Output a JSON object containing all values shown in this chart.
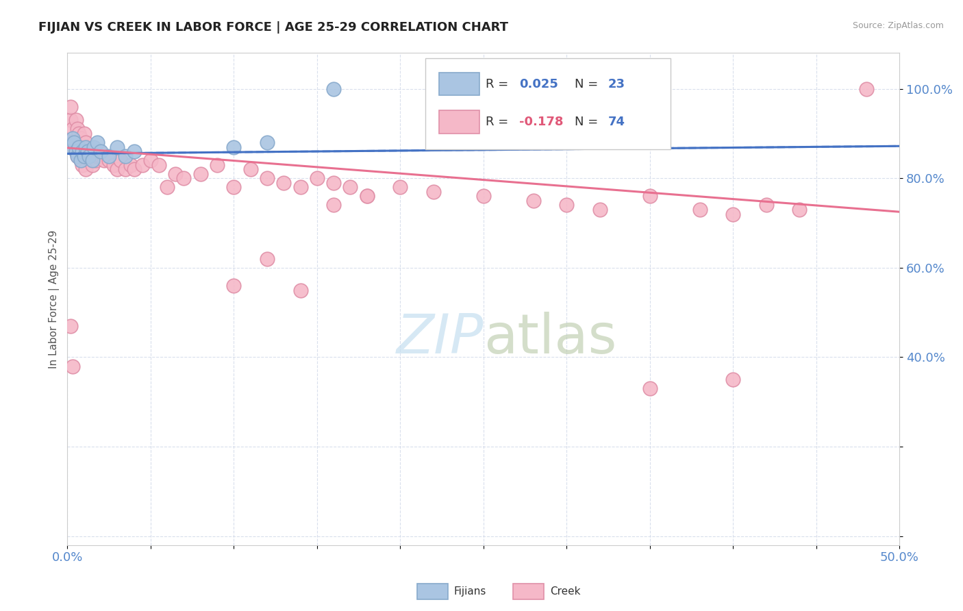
{
  "title": "FIJIAN VS CREEK IN LABOR FORCE | AGE 25-29 CORRELATION CHART",
  "source": "Source: ZipAtlas.com",
  "ylabel": "In Labor Force | Age 25-29",
  "xmin": 0.0,
  "xmax": 0.5,
  "ymin": -0.02,
  "ymax": 1.08,
  "yticks": [
    0.0,
    0.2,
    0.4,
    0.6,
    0.8,
    1.0
  ],
  "ytick_labels": [
    "",
    "",
    "40.0%",
    "60.0%",
    "80.0%",
    "100.0%"
  ],
  "xticks": [
    0.0,
    0.05,
    0.1,
    0.15,
    0.2,
    0.25,
    0.3,
    0.35,
    0.4,
    0.45,
    0.5
  ],
  "xtick_labels_show": [
    "0.0%",
    "",
    "",
    "",
    "",
    "",
    "",
    "",
    "",
    "",
    "50.0%"
  ],
  "color_fijian": "#aac5e2",
  "color_creek": "#f5b8c8",
  "color_fijian_edge": "#88aacc",
  "color_creek_edge": "#e090a8",
  "color_fijian_line": "#4472c4",
  "color_creek_line": "#e87090",
  "color_blue_text": "#4472c4",
  "color_pink_text": "#e05878",
  "color_axis_text": "#5588cc",
  "watermark_color": "#c5dff0",
  "fijian_x": [
    0.002,
    0.003,
    0.004,
    0.005,
    0.006,
    0.007,
    0.008,
    0.009,
    0.01,
    0.011,
    0.012,
    0.013,
    0.015,
    0.016,
    0.018,
    0.02,
    0.025,
    0.03,
    0.035,
    0.04,
    0.1,
    0.12,
    0.16
  ],
  "fijian_y": [
    0.87,
    0.89,
    0.88,
    0.86,
    0.85,
    0.87,
    0.84,
    0.86,
    0.85,
    0.87,
    0.86,
    0.85,
    0.84,
    0.87,
    0.88,
    0.86,
    0.85,
    0.87,
    0.85,
    0.86,
    0.87,
    0.88,
    1.0
  ],
  "creek_x": [
    0.001,
    0.002,
    0.002,
    0.003,
    0.003,
    0.004,
    0.005,
    0.005,
    0.006,
    0.006,
    0.007,
    0.007,
    0.008,
    0.008,
    0.009,
    0.009,
    0.01,
    0.01,
    0.011,
    0.011,
    0.012,
    0.013,
    0.014,
    0.015,
    0.016,
    0.017,
    0.018,
    0.019,
    0.02,
    0.022,
    0.025,
    0.028,
    0.03,
    0.032,
    0.035,
    0.038,
    0.04,
    0.045,
    0.05,
    0.055,
    0.06,
    0.065,
    0.07,
    0.08,
    0.09,
    0.1,
    0.11,
    0.12,
    0.13,
    0.14,
    0.15,
    0.16,
    0.17,
    0.18,
    0.2,
    0.22,
    0.25,
    0.28,
    0.3,
    0.32,
    0.35,
    0.38,
    0.4,
    0.42,
    0.44,
    0.1,
    0.12,
    0.14,
    0.16,
    0.18,
    0.35,
    0.4,
    0.002,
    0.003,
    0.48
  ],
  "creek_y": [
    0.88,
    0.93,
    0.96,
    0.91,
    0.88,
    0.87,
    0.93,
    0.86,
    0.91,
    0.85,
    0.9,
    0.86,
    0.89,
    0.84,
    0.87,
    0.83,
    0.9,
    0.85,
    0.88,
    0.82,
    0.86,
    0.85,
    0.84,
    0.83,
    0.86,
    0.84,
    0.85,
    0.86,
    0.85,
    0.84,
    0.84,
    0.83,
    0.82,
    0.84,
    0.82,
    0.83,
    0.82,
    0.83,
    0.84,
    0.83,
    0.78,
    0.81,
    0.8,
    0.81,
    0.83,
    0.78,
    0.82,
    0.8,
    0.79,
    0.78,
    0.8,
    0.79,
    0.78,
    0.76,
    0.78,
    0.77,
    0.76,
    0.75,
    0.74,
    0.73,
    0.76,
    0.73,
    0.72,
    0.74,
    0.73,
    0.56,
    0.62,
    0.55,
    0.74,
    0.76,
    0.33,
    0.35,
    0.47,
    0.38,
    1.0
  ],
  "fijian_line_x0": 0.0,
  "fijian_line_x1": 0.5,
  "fijian_line_y0": 0.855,
  "fijian_line_y1": 0.872,
  "creek_line_x0": 0.0,
  "creek_line_x1": 0.5,
  "creek_line_y0": 0.868,
  "creek_line_y1": 0.725
}
